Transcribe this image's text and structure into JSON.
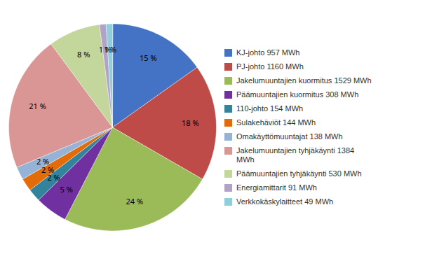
{
  "chart_data": {
    "type": "pie",
    "categories": [
      "KJ-johto 957 MWh",
      "PJ-johto 1160 MWh",
      "Jakelumuuntajien kuormitus 1529 MWh",
      "Päämuuntajien kuormitus 308 MWh",
      "110-johto 154 MWh",
      "Sulakehäviöt 144 MWh",
      "Omakäyttömuuntajat 138 MWh",
      "Jakelumuuntajien tyhjäkäynti 1384\nMWh",
      "Päämuuntajien tyhjäkäynti 530 MWh",
      "Energiamittarit 91 MWh",
      "Verkkokäskylaitteet 49 MWh"
    ],
    "values": [
      15,
      18,
      24,
      5,
      2,
      2,
      2,
      21,
      8,
      1,
      1
    ],
    "value_labels": [
      "15 %",
      "18 %",
      "24 %",
      "5 %",
      "2 %",
      "2 %",
      "2 %",
      "21 %",
      "8 %",
      "1 %",
      "1 %"
    ],
    "colors": [
      "#4472C4",
      "#BE4B48",
      "#9BBB59",
      "#7030A0",
      "#31849B",
      "#E36C0A",
      "#95B3D7",
      "#DA9694",
      "#C3D69B",
      "#B2A2C7",
      "#92CDDC"
    ],
    "data_labels": true,
    "legend": "right"
  }
}
